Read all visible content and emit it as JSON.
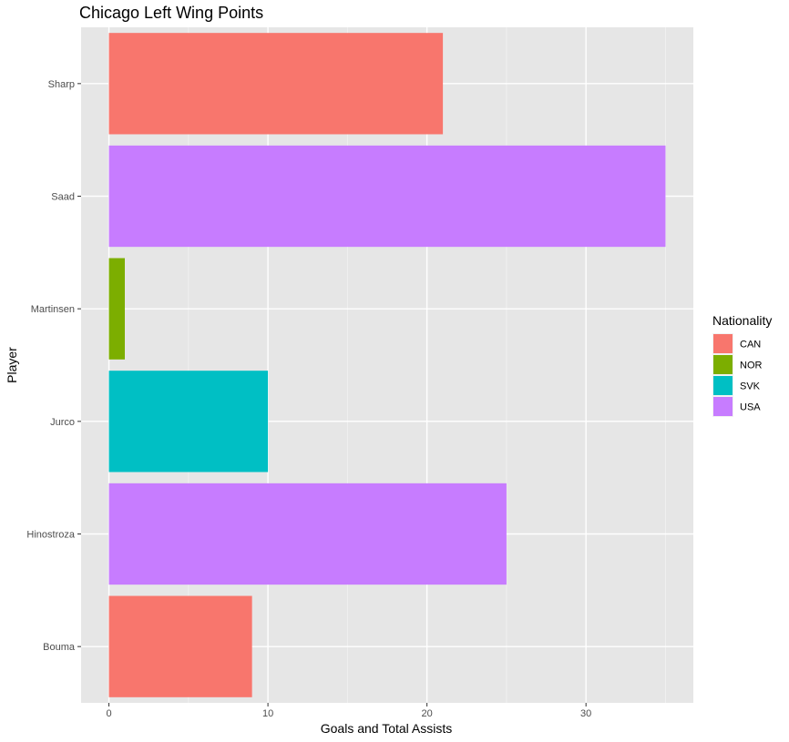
{
  "chart_data": {
    "type": "bar",
    "orientation": "horizontal",
    "title": "Chicago Left Wing Points",
    "xlabel": "Goals and Total Assists",
    "ylabel": "Player",
    "categories": [
      "Bouma",
      "Hinostroza",
      "Jurco",
      "Martinsen",
      "Saad",
      "Sharp"
    ],
    "values": [
      9,
      25,
      10,
      1,
      35,
      21
    ],
    "nationality": [
      "CAN",
      "USA",
      "SVK",
      "NOR",
      "USA",
      "CAN"
    ],
    "xlim": [
      -1.75,
      36.75
    ],
    "x_ticks": [
      0,
      10,
      20,
      30
    ],
    "grid": true,
    "legend": {
      "title": "Nationality",
      "position": "right",
      "items": [
        {
          "label": "CAN",
          "color": "#F8766D"
        },
        {
          "label": "NOR",
          "color": "#7CAE00"
        },
        {
          "label": "SVK",
          "color": "#00BFC4"
        },
        {
          "label": "USA",
          "color": "#C77CFF"
        }
      ]
    },
    "colors": {
      "panel_background": "#e6e6e6",
      "grid_major": "#ffffff"
    }
  }
}
